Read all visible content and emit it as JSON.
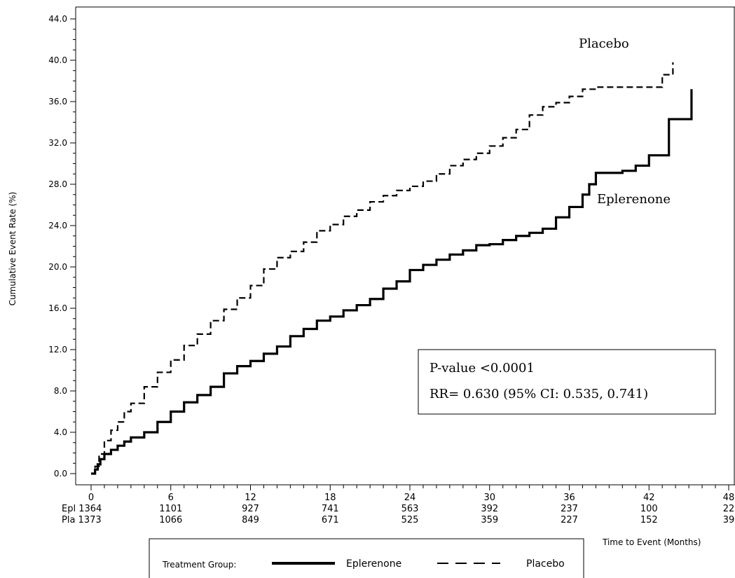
{
  "chart_data": {
    "type": "line",
    "title": "",
    "xlabel": "Time to Event (Months)",
    "ylabel": "Cumulative Event Rate (%)",
    "xlim": [
      0,
      48
    ],
    "ylim": [
      0,
      44
    ],
    "x_ticks": [
      "0",
      "6",
      "12",
      "18",
      "24",
      "30",
      "36",
      "42",
      "48"
    ],
    "y_ticks": [
      "0.0",
      "4.0",
      "8.0",
      "12.0",
      "16.0",
      "20.0",
      "24.0",
      "28.0",
      "32.0",
      "36.0",
      "40.0",
      "44.0"
    ],
    "grid": false,
    "series": [
      {
        "name": "Eplerenone",
        "style": "solid",
        "points": [
          [
            0,
            0
          ],
          [
            0.3,
            0.4
          ],
          [
            0.5,
            0.9
          ],
          [
            0.7,
            1.4
          ],
          [
            1,
            1.9
          ],
          [
            1.5,
            2.3
          ],
          [
            2,
            2.7
          ],
          [
            2.5,
            3.1
          ],
          [
            3,
            3.5
          ],
          [
            4,
            4.0
          ],
          [
            5,
            5.0
          ],
          [
            6,
            6.0
          ],
          [
            7,
            6.9
          ],
          [
            8,
            7.6
          ],
          [
            9,
            8.4
          ],
          [
            10,
            9.7
          ],
          [
            11,
            10.4
          ],
          [
            12,
            10.9
          ],
          [
            13,
            11.6
          ],
          [
            14,
            12.3
          ],
          [
            15,
            13.3
          ],
          [
            16,
            14.0
          ],
          [
            17,
            14.8
          ],
          [
            18,
            15.2
          ],
          [
            19,
            15.8
          ],
          [
            20,
            16.3
          ],
          [
            21,
            16.9
          ],
          [
            22,
            17.9
          ],
          [
            23,
            18.6
          ],
          [
            24,
            19.7
          ],
          [
            25,
            20.2
          ],
          [
            26,
            20.7
          ],
          [
            27,
            21.2
          ],
          [
            28,
            21.6
          ],
          [
            29,
            22.1
          ],
          [
            30,
            22.2
          ],
          [
            31,
            22.6
          ],
          [
            32,
            23.0
          ],
          [
            33,
            23.3
          ],
          [
            34,
            23.7
          ],
          [
            35,
            24.8
          ],
          [
            36,
            25.8
          ],
          [
            37,
            27.0
          ],
          [
            37.5,
            28.0
          ],
          [
            38,
            29.1
          ],
          [
            39,
            29.1
          ],
          [
            40,
            29.3
          ],
          [
            41,
            29.8
          ],
          [
            42,
            30.8
          ],
          [
            43,
            30.8
          ],
          [
            43.5,
            34.3
          ],
          [
            44,
            34.3
          ],
          [
            45,
            34.3
          ],
          [
            45.2,
            37.2
          ]
        ]
      },
      {
        "name": "Placebo",
        "style": "dashed",
        "points": [
          [
            0,
            0
          ],
          [
            0.3,
            0.7
          ],
          [
            0.6,
            1.9
          ],
          [
            1,
            3.2
          ],
          [
            1.5,
            4.2
          ],
          [
            2,
            5.0
          ],
          [
            2.5,
            6.0
          ],
          [
            3,
            6.8
          ],
          [
            4,
            8.4
          ],
          [
            5,
            9.8
          ],
          [
            6,
            11.0
          ],
          [
            7,
            12.4
          ],
          [
            8,
            13.5
          ],
          [
            9,
            14.8
          ],
          [
            10,
            15.9
          ],
          [
            11,
            17.0
          ],
          [
            12,
            18.2
          ],
          [
            13,
            19.8
          ],
          [
            14,
            20.9
          ],
          [
            15,
            21.5
          ],
          [
            16,
            22.4
          ],
          [
            17,
            23.5
          ],
          [
            18,
            24.1
          ],
          [
            19,
            24.9
          ],
          [
            20,
            25.5
          ],
          [
            21,
            26.3
          ],
          [
            22,
            26.9
          ],
          [
            23,
            27.4
          ],
          [
            24,
            27.8
          ],
          [
            25,
            28.3
          ],
          [
            26,
            29.0
          ],
          [
            27,
            29.8
          ],
          [
            28,
            30.4
          ],
          [
            29,
            31.0
          ],
          [
            30,
            31.7
          ],
          [
            31,
            32.5
          ],
          [
            32,
            33.3
          ],
          [
            33,
            34.7
          ],
          [
            34,
            35.5
          ],
          [
            35,
            35.9
          ],
          [
            36,
            36.5
          ],
          [
            37,
            37.2
          ],
          [
            38,
            37.4
          ],
          [
            39,
            37.4
          ],
          [
            40,
            37.4
          ],
          [
            41,
            37.4
          ],
          [
            42,
            37.4
          ],
          [
            42.8,
            37.4
          ],
          [
            43,
            38.6
          ],
          [
            43.5,
            38.6
          ],
          [
            43.8,
            39.8
          ]
        ]
      }
    ],
    "annotations": {
      "placebo_label": "Placebo",
      "eplerenone_label": "Eplerenone",
      "stats_line1": "P-value <0.0001",
      "stats_line2": "RR= 0.630 (95% CI: 0.535, 0.741)"
    },
    "risk_table": {
      "rows": [
        {
          "label": "Epl 1364",
          "values": [
            "1101",
            "927",
            "741",
            "563",
            "392",
            "237",
            "100",
            "22"
          ]
        },
        {
          "label": "Pla 1373",
          "values": [
            "1066",
            "849",
            "671",
            "525",
            "359",
            "227",
            "152",
            "39"
          ]
        }
      ]
    },
    "legend": {
      "title": "Treatment Group:",
      "items": [
        "Eplerenone",
        "Placebo"
      ],
      "placement": "bottom-center"
    }
  }
}
